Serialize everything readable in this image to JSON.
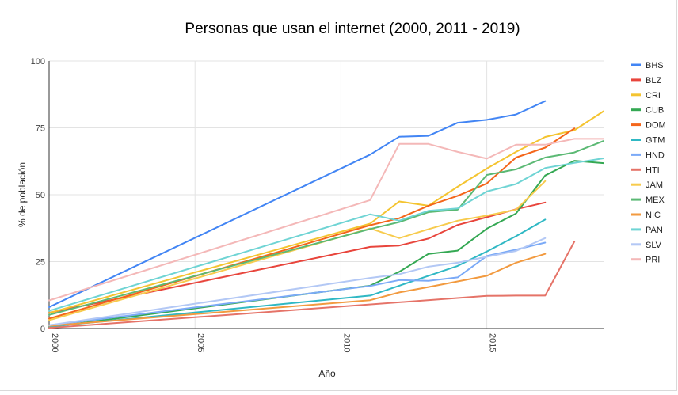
{
  "chart_data": {
    "type": "line",
    "title": "Personas que usan el internet (2000, 2011 - 2019)",
    "xlabel": "Año",
    "ylabel": "% de población",
    "xlim": [
      2000,
      2019
    ],
    "ylim": [
      0,
      100
    ],
    "x_ticks": [
      2000,
      2005,
      2010,
      2015
    ],
    "y_ticks": [
      0,
      25,
      50,
      75,
      100
    ],
    "legend_position": "right",
    "grid": "horizontal",
    "series": [
      {
        "name": "BHS",
        "color": "#4285f4",
        "x": [
          2000,
          2011,
          2012,
          2013,
          2014,
          2015,
          2016,
          2017
        ],
        "values": [
          8,
          65,
          71.7,
          72,
          76.9,
          78,
          80,
          85
        ]
      },
      {
        "name": "BLZ",
        "color": "#e8453c",
        "x": [
          2000,
          2011,
          2012,
          2013,
          2014,
          2015,
          2016,
          2017
        ],
        "values": [
          5.9,
          30.5,
          31,
          33.6,
          38.7,
          41.6,
          44.6,
          47.1
        ]
      },
      {
        "name": "CRI",
        "color": "#f4c430",
        "x": [
          2000,
          2011,
          2012,
          2013,
          2014,
          2015,
          2016,
          2017,
          2018,
          2019
        ],
        "values": [
          5.8,
          39.2,
          47.5,
          45.9,
          53,
          59.8,
          66,
          71.6,
          74.1,
          81.2
        ]
      },
      {
        "name": "CUB",
        "color": "#34a853",
        "x": [
          2000,
          2011,
          2012,
          2013,
          2014,
          2015,
          2016,
          2017,
          2018,
          2019
        ],
        "values": [
          0.5,
          16,
          21.2,
          27.9,
          29.1,
          37.3,
          43,
          57.2,
          62.7,
          61.8
        ]
      },
      {
        "name": "DOM",
        "color": "#f4661b",
        "x": [
          2000,
          2011,
          2012,
          2013,
          2014,
          2015,
          2016,
          2017,
          2018
        ],
        "values": [
          3.7,
          38.6,
          41.2,
          45.9,
          49.6,
          54.2,
          63.9,
          67.6,
          74.8
        ]
      },
      {
        "name": "GTM",
        "color": "#2fb8c4",
        "x": [
          2000,
          2011,
          2012,
          2013,
          2014,
          2015,
          2016,
          2017
        ],
        "values": [
          0.7,
          12.3,
          16,
          19.7,
          23.4,
          28.8,
          34.5,
          40.7
        ]
      },
      {
        "name": "HND",
        "color": "#7baaf7",
        "x": [
          2000,
          2011,
          2012,
          2013,
          2014,
          2015,
          2016,
          2017
        ],
        "values": [
          1.2,
          15.9,
          18.1,
          17.8,
          19.1,
          27.1,
          29.5,
          32.1
        ]
      },
      {
        "name": "HTI",
        "color": "#e57368",
        "x": [
          2000,
          2015,
          2016,
          2017,
          2018
        ],
        "values": [
          0.2,
          12.2,
          12.3,
          12.3,
          32.5
        ]
      },
      {
        "name": "JAM",
        "color": "#f7cb4d",
        "x": [
          2000,
          2011,
          2012,
          2013,
          2014,
          2015,
          2016,
          2017
        ],
        "values": [
          3.1,
          37.4,
          33.8,
          37.1,
          40.3,
          42.2,
          44.4,
          55.1
        ]
      },
      {
        "name": "MEX",
        "color": "#5bb974",
        "x": [
          2000,
          2011,
          2012,
          2013,
          2014,
          2015,
          2016,
          2017,
          2018,
          2019
        ],
        "values": [
          5.1,
          37.2,
          39.8,
          43.5,
          44.4,
          57.4,
          59.5,
          63.9,
          65.8,
          70.1
        ]
      },
      {
        "name": "NIC",
        "color": "#f29a3f",
        "x": [
          2000,
          2011,
          2012,
          2013,
          2014,
          2015,
          2016,
          2017
        ],
        "values": [
          1,
          10.6,
          13.5,
          15.5,
          17.6,
          19.7,
          24.6,
          27.9
        ]
      },
      {
        "name": "PAN",
        "color": "#6fd4d4",
        "x": [
          2000,
          2011,
          2012,
          2013,
          2014,
          2015,
          2016,
          2017,
          2018,
          2019
        ],
        "values": [
          6.6,
          42.7,
          40.3,
          44,
          44.9,
          51.2,
          54,
          60,
          61.9,
          63.6
        ]
      },
      {
        "name": "SLV",
        "color": "#b3c8f5",
        "x": [
          2000,
          2011,
          2012,
          2013,
          2014,
          2015,
          2016,
          2017
        ],
        "values": [
          1.2,
          18.9,
          20.3,
          23.1,
          24.6,
          26.8,
          29,
          33.8
        ]
      },
      {
        "name": "PRI",
        "color": "#f4b8b8",
        "x": [
          2000,
          2011,
          2012,
          2013,
          2014,
          2015,
          2016,
          2017,
          2018,
          2019
        ],
        "values": [
          10.5,
          48,
          69,
          69,
          66,
          63.5,
          68.7,
          68.7,
          70.9,
          70.9
        ]
      }
    ]
  }
}
